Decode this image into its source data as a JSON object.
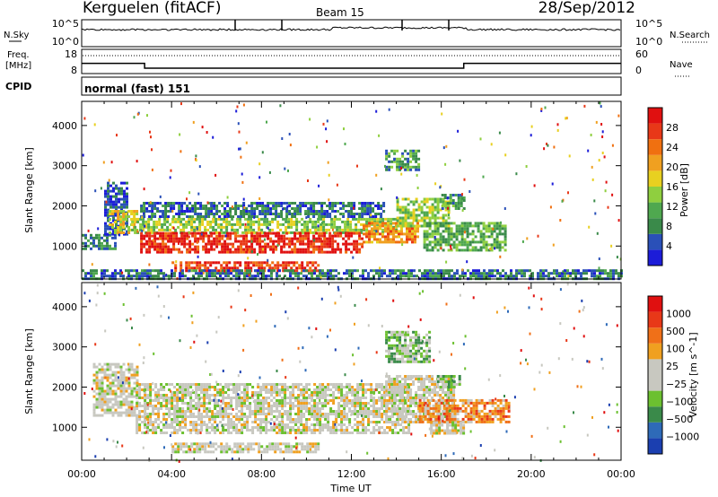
{
  "header": {
    "station": "Kerguelen (fitACF)",
    "beam": "Beam 15",
    "date": "28/Sep/2012"
  },
  "strips": {
    "nsky_label": "N.Sky",
    "nsky_ticks": [
      "10^5",
      "10^0"
    ],
    "nsearch_label": "N.Search",
    "nsearch_ticks": [
      "10^5",
      "10^0"
    ],
    "freq_label_1": "Freq.",
    "freq_label_2": "[MHz]",
    "freq_ticks": [
      "18",
      "8"
    ],
    "nave_label": "Nave",
    "nave_ticks": [
      "60",
      "0"
    ],
    "cpid_label": "CPID",
    "cpid_text": "normal (fast) 151"
  },
  "x_axis": {
    "label": "Time UT",
    "ticks": [
      "00:00",
      "04:00",
      "08:00",
      "12:00",
      "16:00",
      "20:00",
      "00:00"
    ]
  },
  "power_panel": {
    "ylabel": "Slant Range [km]",
    "yticks": [
      "4000",
      "3000",
      "2000",
      "1000"
    ],
    "colorbar_label": "Power [dB]",
    "colorbar_ticks": [
      "28",
      "24",
      "20",
      "16",
      "12",
      "8",
      "4"
    ]
  },
  "velocity_panel": {
    "ylabel": "Slant Range [km]",
    "yticks": [
      "4000",
      "3000",
      "2000",
      "1000"
    ],
    "colorbar_label": "Velocity [m s^-1]",
    "colorbar_ticks": [
      "1000",
      "500",
      "100",
      "25",
      "−25",
      "−100",
      "−500",
      "−1000"
    ]
  },
  "chart_data": {
    "type": "heatmap",
    "x_range_hours": [
      0,
      24
    ],
    "y_range_km": [
      180,
      4600
    ],
    "power_colors": [
      "#1c1cd8",
      "#2a50b8",
      "#3a8a4a",
      "#4fa84f",
      "#8fcf3f",
      "#e8d020",
      "#f0a020",
      "#f07010",
      "#e83818",
      "#e01010"
    ],
    "velocity_colors": [
      "#1b3fb0",
      "#2e6ab8",
      "#3a8a4a",
      "#6cc030",
      "#c8c8c0",
      "#c8c8c0",
      "#f0a020",
      "#f07018",
      "#e83818",
      "#e01010"
    ],
    "freq_steps": [
      {
        "t": 0.0,
        "mhz": 12.2
      },
      {
        "t": 2.8,
        "mhz": 10.2
      },
      {
        "t": 17.0,
        "mhz": 12.2
      },
      {
        "t": 24.0,
        "mhz": 12.2
      }
    ],
    "power_regions": [
      {
        "t0": 0.0,
        "t1": 1.5,
        "r0": 900,
        "r1": 1300,
        "level": 0.25
      },
      {
        "t0": 1.0,
        "t1": 2.0,
        "r0": 1300,
        "r1": 2600,
        "level": 0.15
      },
      {
        "t0": 1.2,
        "t1": 2.5,
        "r0": 1300,
        "r1": 1900,
        "level": 0.55
      },
      {
        "t0": 2.2,
        "t1": 14.0,
        "r0": 1350,
        "r1": 1700,
        "level": 0.45
      },
      {
        "t0": 2.6,
        "t1": 13.5,
        "r0": 1750,
        "r1": 2100,
        "level": 0.2
      },
      {
        "t0": 2.6,
        "t1": 12.5,
        "r0": 850,
        "r1": 1350,
        "level": 0.9
      },
      {
        "t0": 4.0,
        "t1": 10.5,
        "r0": 380,
        "r1": 620,
        "level": 0.85
      },
      {
        "t0": 12.5,
        "t1": 15.0,
        "r0": 1100,
        "r1": 1600,
        "level": 0.7
      },
      {
        "t0": 14.0,
        "t1": 16.3,
        "r0": 1500,
        "r1": 2200,
        "level": 0.45
      },
      {
        "t0": 13.5,
        "t1": 15.0,
        "r0": 2900,
        "r1": 3400,
        "level": 0.3
      },
      {
        "t0": 15.2,
        "t1": 18.8,
        "r0": 900,
        "r1": 1600,
        "level": 0.35
      },
      {
        "t0": 16.0,
        "t1": 17.0,
        "r0": 1900,
        "r1": 2300,
        "level": 0.3
      },
      {
        "t0": 0.0,
        "t1": 24.0,
        "r0": 200,
        "r1": 420,
        "level": 0.2
      }
    ],
    "velocity_regions": [
      {
        "t0": 0.5,
        "t1": 2.5,
        "r0": 1300,
        "r1": 2600,
        "level": 0.5
      },
      {
        "t0": 2.4,
        "t1": 14.5,
        "r0": 850,
        "r1": 2100,
        "level": 0.5
      },
      {
        "t0": 4.0,
        "t1": 10.5,
        "r0": 380,
        "r1": 620,
        "level": 0.5
      },
      {
        "t0": 13.5,
        "t1": 16.5,
        "r0": 1100,
        "r1": 2300,
        "level": 0.5
      },
      {
        "t0": 13.5,
        "t1": 15.5,
        "r0": 2600,
        "r1": 3400,
        "level": 0.35
      },
      {
        "t0": 15.8,
        "t1": 16.8,
        "r0": 2000,
        "r1": 2300,
        "level": 0.35
      },
      {
        "t0": 15.0,
        "t1": 19.0,
        "r0": 1100,
        "r1": 1700,
        "level": 0.7
      },
      {
        "t0": 15.5,
        "t1": 17.0,
        "r0": 850,
        "r1": 1150,
        "level": 0.5
      }
    ]
  }
}
